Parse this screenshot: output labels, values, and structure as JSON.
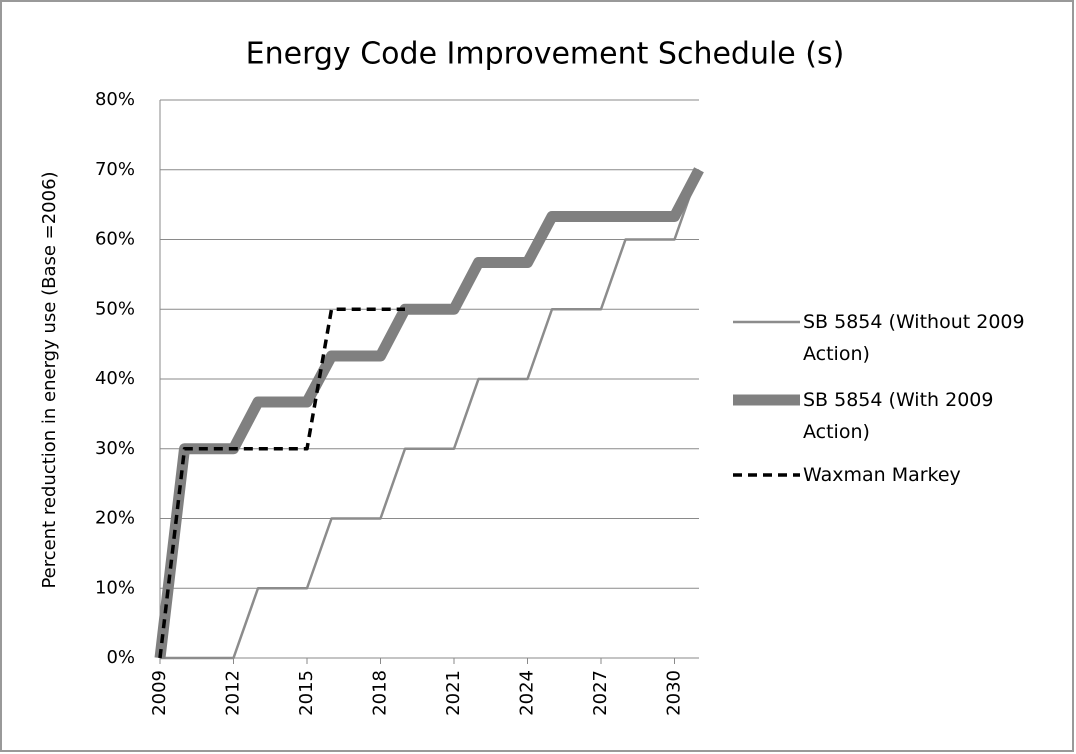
{
  "chart_data": {
    "type": "line",
    "title": "Energy Code Improvement Schedule (s)",
    "y_label": "Percent reduction in energy use (Base =2006)",
    "x": [
      2009,
      2010,
      2011,
      2012,
      2013,
      2014,
      2015,
      2016,
      2017,
      2018,
      2019,
      2020,
      2021,
      2022,
      2023,
      2024,
      2025,
      2026,
      2027,
      2028,
      2029,
      2030,
      2031
    ],
    "xlim": [
      2009,
      2031
    ],
    "xticks": [
      2009,
      2012,
      2015,
      2018,
      2021,
      2024,
      2027,
      2030
    ],
    "ylim": [
      0,
      80
    ],
    "yticks": [
      {
        "value": 0,
        "label": "0%"
      },
      {
        "value": 10,
        "label": "10%"
      },
      {
        "value": 20,
        "label": "20%"
      },
      {
        "value": 30,
        "label": "30%"
      },
      {
        "value": 40,
        "label": "40%"
      },
      {
        "value": 50,
        "label": "50%"
      },
      {
        "value": 60,
        "label": "60%"
      },
      {
        "value": 70,
        "label": "70%"
      },
      {
        "value": 80,
        "label": "80%"
      }
    ],
    "grid": true,
    "legend": "right",
    "series": [
      {
        "name": "SB 5854 (Without 2009 Action)",
        "color": "#8c8c8c",
        "values": [
          0,
          0,
          0,
          0,
          10,
          10,
          10,
          20,
          20,
          20,
          30,
          30,
          30,
          40,
          40,
          40,
          50,
          50,
          50,
          60,
          60,
          60,
          70
        ]
      },
      {
        "name": "SB 5854 (With 2009 Action)",
        "color": "#808080",
        "values": [
          0,
          30,
          30,
          30,
          36.7,
          36.7,
          36.7,
          43.3,
          43.3,
          43.3,
          50,
          50,
          50,
          56.7,
          56.7,
          56.7,
          63.3,
          63.3,
          63.3,
          63.3,
          63.3,
          63.3,
          70
        ]
      },
      {
        "name": "Waxman Markey",
        "color": "#000000",
        "values": [
          0,
          30,
          30,
          30,
          30,
          30,
          30,
          50,
          50,
          50,
          50,
          null,
          null,
          null,
          null,
          null,
          null,
          null,
          null,
          null,
          null,
          null,
          null
        ]
      }
    ]
  }
}
